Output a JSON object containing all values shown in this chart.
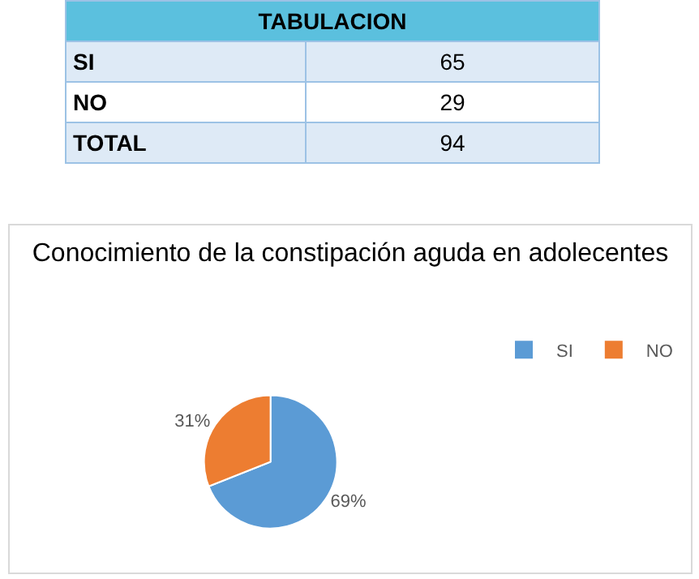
{
  "chart_data": [
    {
      "type": "other",
      "title": "TABULACION",
      "categories": [
        "SI",
        "NO",
        "TOTAL"
      ],
      "values": [
        65,
        29,
        94
      ],
      "data_labels": true
    },
    {
      "type": "pie",
      "title": "Conocimiento de la constipación aguda en adolecentes",
      "categories": [
        "SI",
        "NO"
      ],
      "values": [
        69,
        31
      ],
      "colors": [
        "#5b9bd5",
        "#ed7d31"
      ],
      "value_labels": [
        "69%",
        "31%"
      ],
      "legend": "top right"
    }
  ]
}
